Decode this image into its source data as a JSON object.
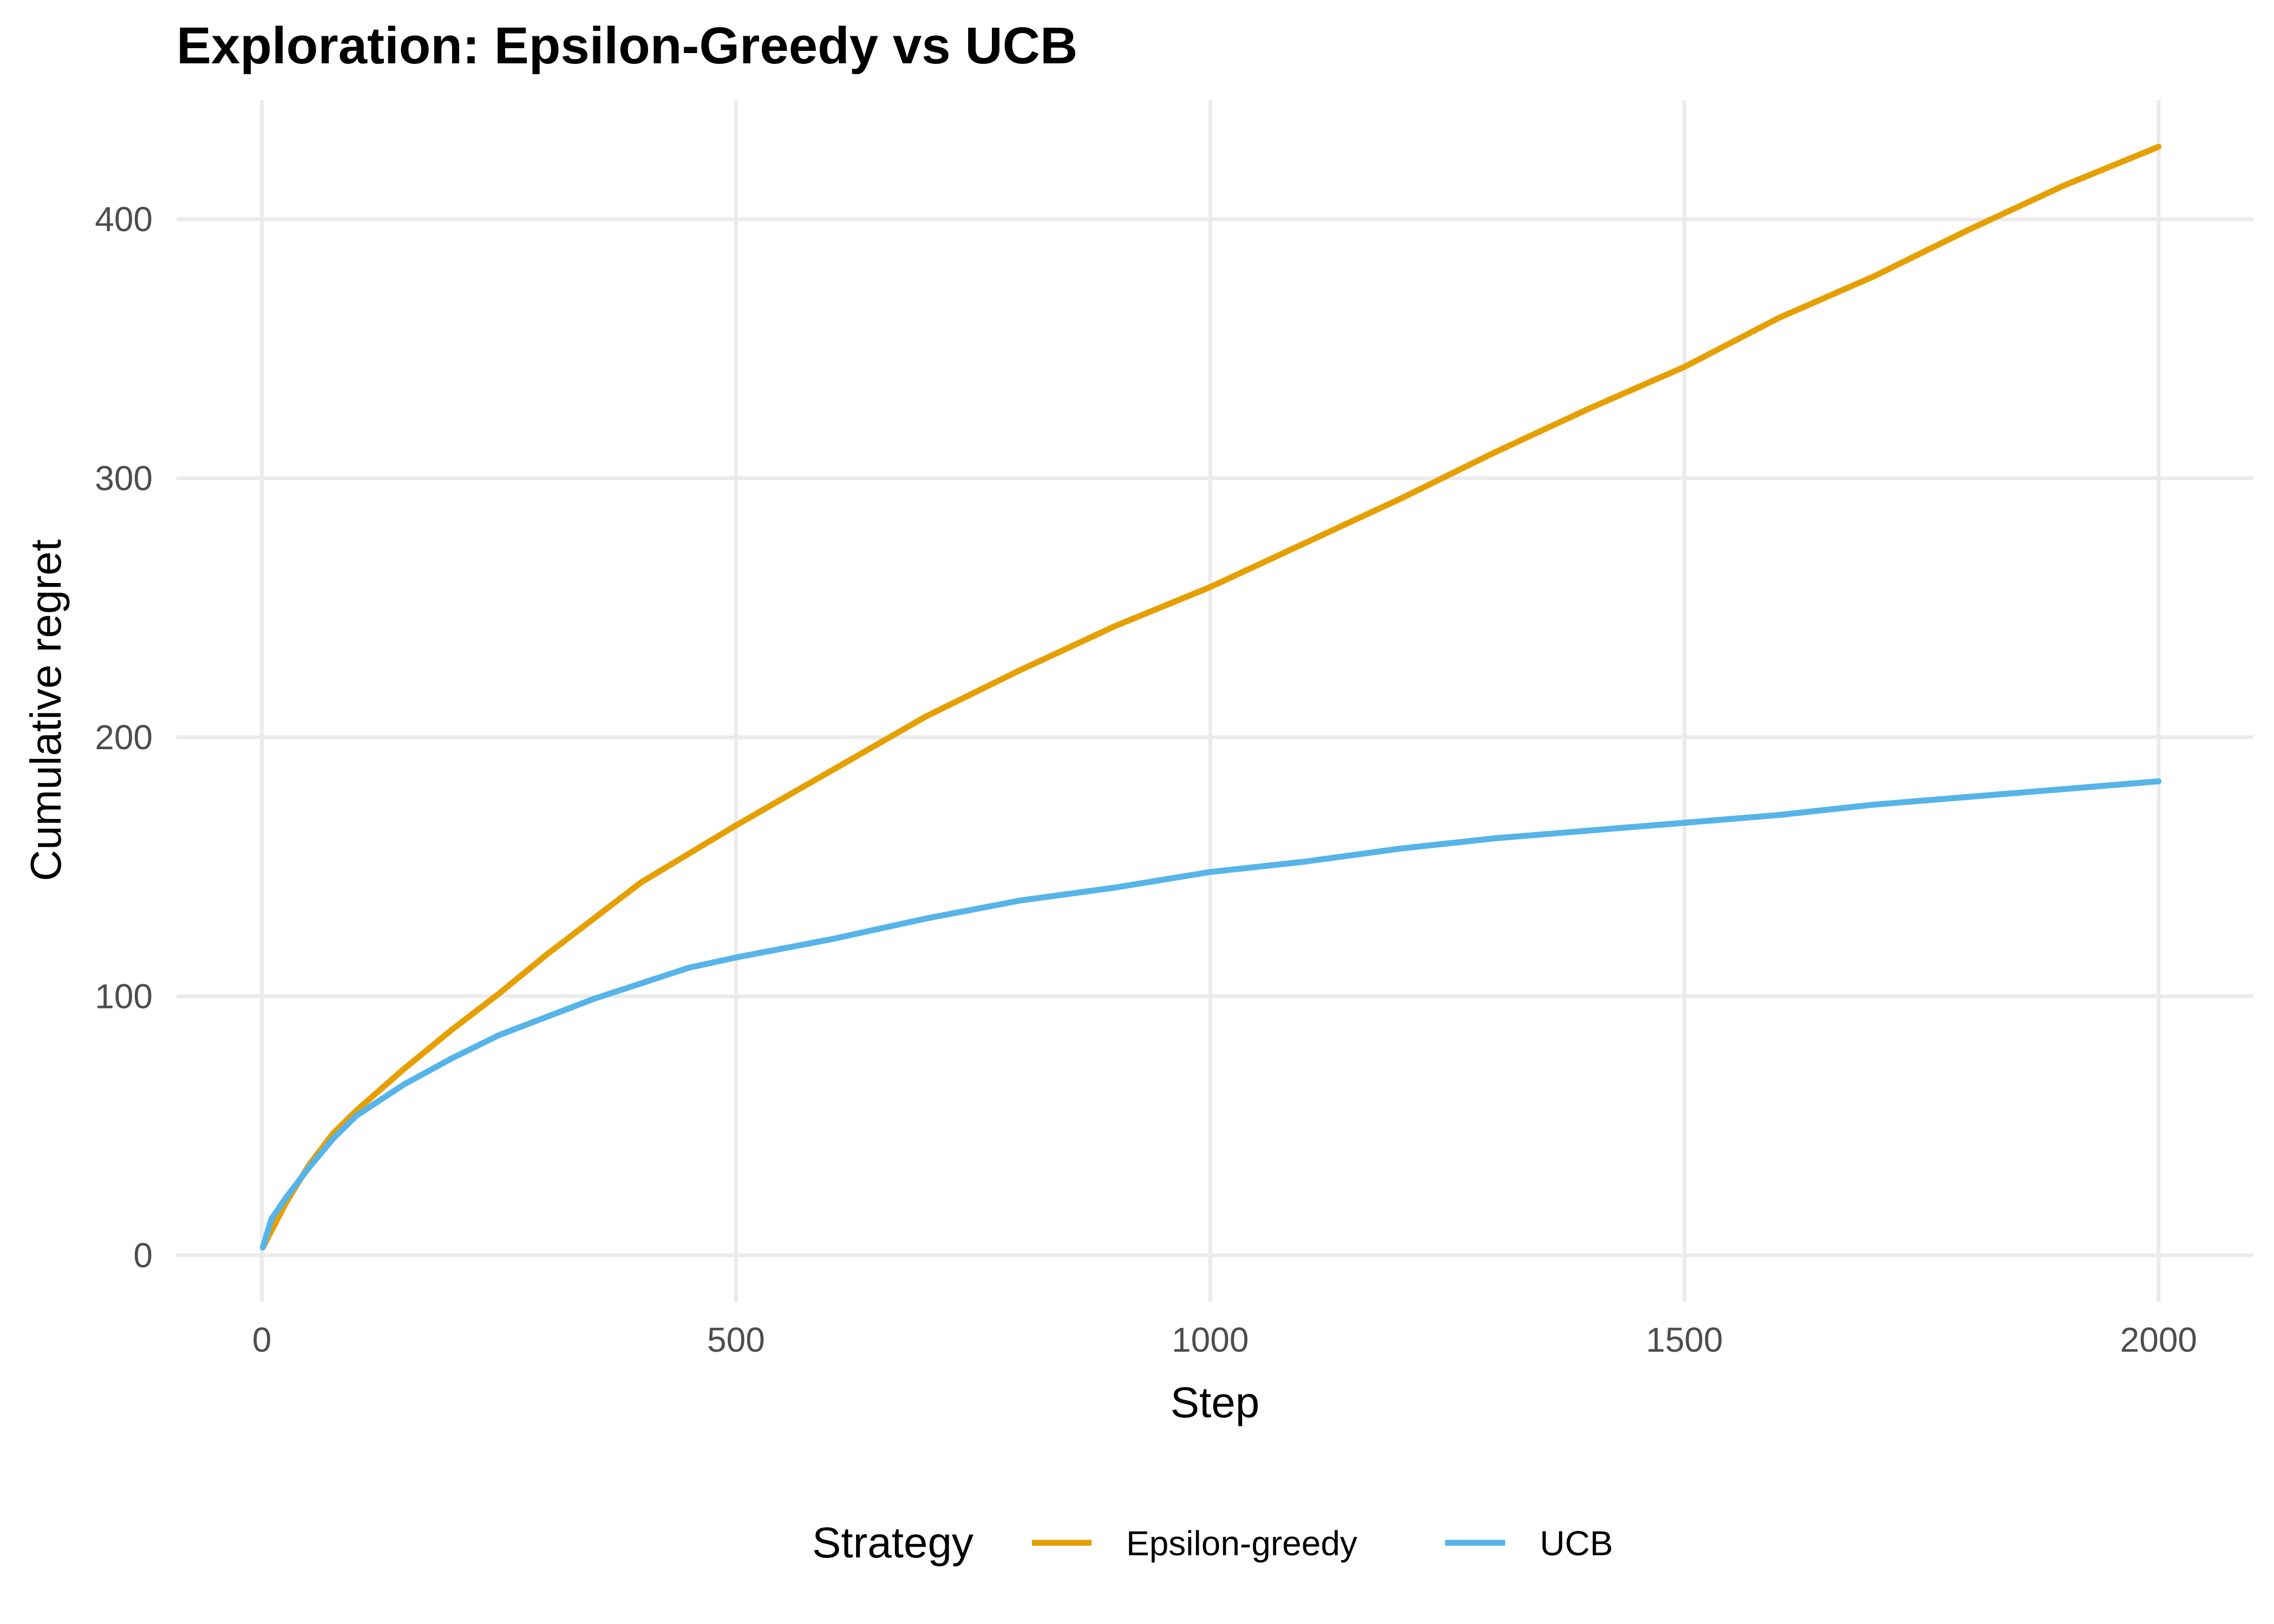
{
  "chart_data": {
    "type": "line",
    "title": "Exploration: Epsilon-Greedy vs UCB",
    "xlabel": "Step",
    "ylabel": "Cumulative regret",
    "xlim": [
      -90,
      2100
    ],
    "ylim": [
      -18,
      446
    ],
    "x_ticks": [
      0,
      500,
      1000,
      1500,
      2000
    ],
    "x_tick_labels": [
      "0",
      "500",
      "1000",
      "1500",
      "2000"
    ],
    "y_ticks": [
      0,
      100,
      200,
      300,
      400
    ],
    "y_tick_labels": [
      "0",
      "100",
      "200",
      "300",
      "400"
    ],
    "grid": true,
    "legend": {
      "title": "Strategy",
      "position": "bottom"
    },
    "series": [
      {
        "name": "Epsilon-greedy",
        "color": "#E69F00",
        "points": [
          [
            1,
            3
          ],
          [
            25,
            20
          ],
          [
            50,
            35
          ],
          [
            75,
            47
          ],
          [
            100,
            56
          ],
          [
            150,
            72
          ],
          [
            200,
            87
          ],
          [
            250,
            101
          ],
          [
            300,
            116
          ],
          [
            350,
            130
          ],
          [
            400,
            144
          ],
          [
            450,
            155
          ],
          [
            500,
            166
          ],
          [
            600,
            187
          ],
          [
            700,
            208
          ],
          [
            800,
            226
          ],
          [
            900,
            243
          ],
          [
            1000,
            258
          ],
          [
            1100,
            275
          ],
          [
            1200,
            292
          ],
          [
            1300,
            310
          ],
          [
            1400,
            327
          ],
          [
            1500,
            343
          ],
          [
            1600,
            362
          ],
          [
            1700,
            378
          ],
          [
            1800,
            396
          ],
          [
            1900,
            413
          ],
          [
            2000,
            428
          ]
        ]
      },
      {
        "name": "UCB",
        "color": "#56B4E9",
        "points": [
          [
            1,
            3
          ],
          [
            10,
            14
          ],
          [
            25,
            22
          ],
          [
            50,
            34
          ],
          [
            75,
            45
          ],
          [
            100,
            54
          ],
          [
            150,
            66
          ],
          [
            200,
            76
          ],
          [
            250,
            85
          ],
          [
            300,
            92
          ],
          [
            350,
            99
          ],
          [
            400,
            105
          ],
          [
            450,
            111
          ],
          [
            500,
            115
          ],
          [
            600,
            122
          ],
          [
            700,
            130
          ],
          [
            800,
            137
          ],
          [
            900,
            142
          ],
          [
            1000,
            148
          ],
          [
            1100,
            152
          ],
          [
            1200,
            157
          ],
          [
            1300,
            161
          ],
          [
            1400,
            164
          ],
          [
            1500,
            167
          ],
          [
            1600,
            170
          ],
          [
            1700,
            174
          ],
          [
            1800,
            177
          ],
          [
            1900,
            180
          ],
          [
            2000,
            183
          ]
        ]
      }
    ]
  }
}
